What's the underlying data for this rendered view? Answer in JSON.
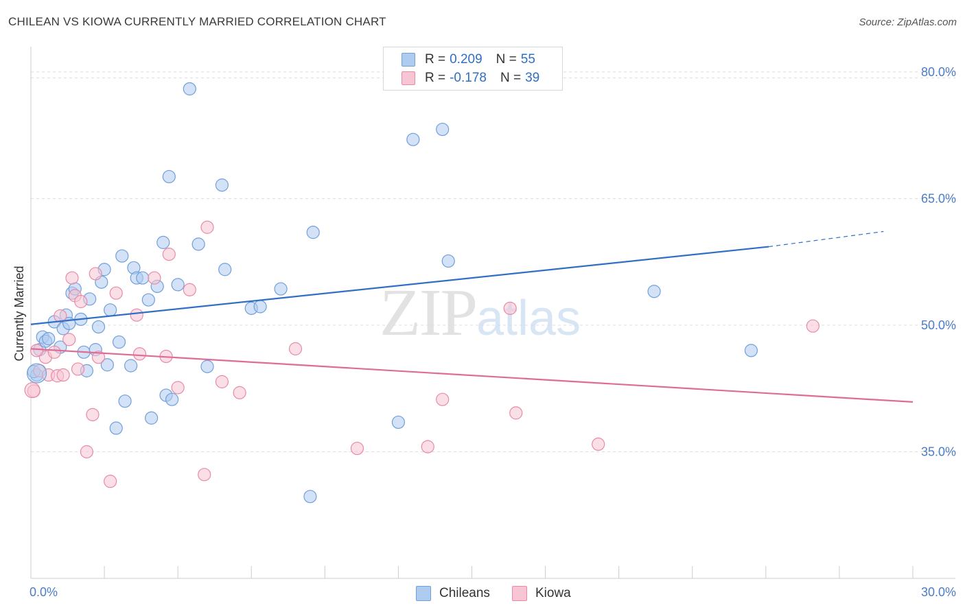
{
  "header": {
    "title": "CHILEAN VS KIOWA CURRENTLY MARRIED CORRELATION CHART",
    "source": "Source: ZipAtlas.com"
  },
  "watermark": {
    "zip": "ZIP",
    "atlas": "atlas"
  },
  "legend": {
    "rows": [
      {
        "r_label": "R =",
        "r_value": "0.209",
        "n_label": "N =",
        "n_value": "55",
        "color": "#aecbf0",
        "border": "#6f9fdc"
      },
      {
        "r_label": "R =",
        "r_value": "-0.178",
        "n_label": "N =",
        "n_value": "39",
        "color": "#f8c5d4",
        "border": "#e88aa6"
      }
    ]
  },
  "bottom_legend": {
    "items": [
      {
        "label": "Chileans",
        "color": "#aecbf0",
        "border": "#6f9fdc"
      },
      {
        "label": "Kiowa",
        "color": "#f8c5d4",
        "border": "#e88aa6"
      }
    ]
  },
  "chart_data": {
    "type": "scatter",
    "title": "CHILEAN VS KIOWA CURRENTLY MARRIED CORRELATION CHART",
    "xlabel": "",
    "ylabel": "Currently Married",
    "xlim": [
      0,
      30
    ],
    "ylim": [
      20,
      83
    ],
    "x_tick_labels": [
      "0.0%",
      "30.0%"
    ],
    "y_ticks": [
      35,
      50,
      65,
      80
    ],
    "y_tick_labels": [
      "35.0%",
      "50.0%",
      "65.0%",
      "80.0%"
    ],
    "grid": true,
    "series": [
      {
        "name": "Chileans",
        "color": "#6f9fdc",
        "fill": "#aecbf0",
        "line": {
          "x0": 0,
          "y0": 50.1,
          "x1": 25.1,
          "y1": 59.3,
          "dash_to_x": 29.0,
          "dash_to_y": 61.1,
          "color": "#2f6fc4"
        },
        "points": [
          [
            0.2,
            44.1
          ],
          [
            0.3,
            47.1
          ],
          [
            0.4,
            48.6
          ],
          [
            0.5,
            48.1
          ],
          [
            0.6,
            48.4
          ],
          [
            0.8,
            50.4
          ],
          [
            1.0,
            47.4
          ],
          [
            1.1,
            49.6
          ],
          [
            1.2,
            51.2
          ],
          [
            1.3,
            50.2
          ],
          [
            1.4,
            53.8
          ],
          [
            1.5,
            54.3
          ],
          [
            1.7,
            50.7
          ],
          [
            1.8,
            46.8
          ],
          [
            1.9,
            44.6
          ],
          [
            2.0,
            53.1
          ],
          [
            2.2,
            47.1
          ],
          [
            2.3,
            49.8
          ],
          [
            2.4,
            55.1
          ],
          [
            2.5,
            56.6
          ],
          [
            2.6,
            45.3
          ],
          [
            2.7,
            51.8
          ],
          [
            2.9,
            37.8
          ],
          [
            3.0,
            48.0
          ],
          [
            3.1,
            58.2
          ],
          [
            3.2,
            41.0
          ],
          [
            3.4,
            45.2
          ],
          [
            3.5,
            56.8
          ],
          [
            3.6,
            55.6
          ],
          [
            3.8,
            55.6
          ],
          [
            4.0,
            53.0
          ],
          [
            4.1,
            39.0
          ],
          [
            4.3,
            54.6
          ],
          [
            4.5,
            59.8
          ],
          [
            4.6,
            41.7
          ],
          [
            4.7,
            67.6
          ],
          [
            4.8,
            41.2
          ],
          [
            5.0,
            54.8
          ],
          [
            5.4,
            78.0
          ],
          [
            5.7,
            59.6
          ],
          [
            6.0,
            45.1
          ],
          [
            6.5,
            66.6
          ],
          [
            6.6,
            56.6
          ],
          [
            7.5,
            52.0
          ],
          [
            7.8,
            52.2
          ],
          [
            8.5,
            54.3
          ],
          [
            9.5,
            29.7
          ],
          [
            9.6,
            61.0
          ],
          [
            12.5,
            38.5
          ],
          [
            13.0,
            72.0
          ],
          [
            14.0,
            73.2
          ],
          [
            14.2,
            57.6
          ],
          [
            21.2,
            54.0
          ],
          [
            24.5,
            47.0
          ],
          [
            0.1,
            44.5
          ]
        ]
      },
      {
        "name": "Kiowa",
        "color": "#e88aa6",
        "fill": "#f8c5d4",
        "line": {
          "x0": 0,
          "y0": 47.2,
          "x1": 30.0,
          "y1": 40.9,
          "color": "#e06c96"
        },
        "points": [
          [
            0.1,
            42.2
          ],
          [
            0.3,
            44.6
          ],
          [
            0.5,
            46.2
          ],
          [
            0.6,
            44.1
          ],
          [
            0.8,
            46.8
          ],
          [
            0.9,
            44.0
          ],
          [
            1.0,
            51.1
          ],
          [
            1.1,
            44.1
          ],
          [
            1.3,
            48.3
          ],
          [
            1.4,
            55.6
          ],
          [
            1.5,
            53.5
          ],
          [
            1.6,
            44.8
          ],
          [
            1.7,
            52.8
          ],
          [
            1.9,
            35.0
          ],
          [
            2.1,
            39.4
          ],
          [
            2.2,
            56.1
          ],
          [
            2.3,
            46.2
          ],
          [
            2.7,
            31.5
          ],
          [
            2.9,
            53.8
          ],
          [
            3.6,
            51.2
          ],
          [
            3.7,
            46.6
          ],
          [
            4.2,
            55.6
          ],
          [
            4.6,
            46.3
          ],
          [
            4.7,
            58.4
          ],
          [
            5.0,
            42.6
          ],
          [
            5.4,
            54.2
          ],
          [
            5.9,
            32.3
          ],
          [
            6.0,
            61.6
          ],
          [
            6.5,
            43.3
          ],
          [
            7.1,
            42.0
          ],
          [
            9.0,
            47.2
          ],
          [
            11.1,
            35.4
          ],
          [
            13.5,
            35.6
          ],
          [
            14.0,
            41.2
          ],
          [
            16.3,
            52.0
          ],
          [
            16.5,
            39.6
          ],
          [
            19.3,
            35.9
          ],
          [
            26.6,
            49.9
          ],
          [
            0.2,
            47.0
          ]
        ]
      }
    ]
  }
}
